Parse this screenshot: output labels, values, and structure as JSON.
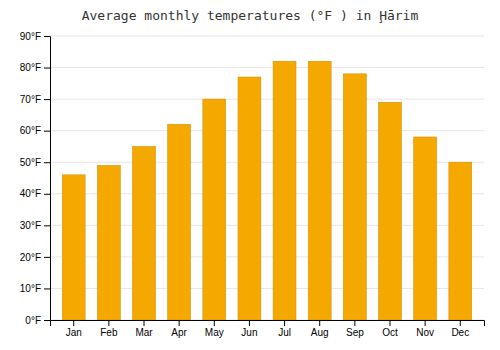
{
  "chart_data": {
    "type": "bar",
    "title": "Average monthly temperatures (°F ) in Ḩārim",
    "categories": [
      "Jan",
      "Feb",
      "Mar",
      "Apr",
      "May",
      "Jun",
      "Jul",
      "Aug",
      "Sep",
      "Oct",
      "Nov",
      "Dec"
    ],
    "values": [
      46,
      49,
      55,
      62,
      70,
      77,
      82,
      82,
      78,
      69,
      58,
      50
    ],
    "color": "#F5A800",
    "ylim": [
      0,
      90
    ],
    "yticks": [
      {
        "value": 0,
        "label": "0°F"
      },
      {
        "value": 10,
        "label": "10°F"
      },
      {
        "value": 20,
        "label": "20°F"
      },
      {
        "value": 30,
        "label": "30°F"
      },
      {
        "value": 40,
        "label": "40°F"
      },
      {
        "value": 50,
        "label": "50°F"
      },
      {
        "value": 60,
        "label": "60°F"
      },
      {
        "value": 70,
        "label": "70°F"
      },
      {
        "value": 80,
        "label": "80°F"
      },
      {
        "value": 90,
        "label": "90°F"
      }
    ],
    "grid": true
  }
}
